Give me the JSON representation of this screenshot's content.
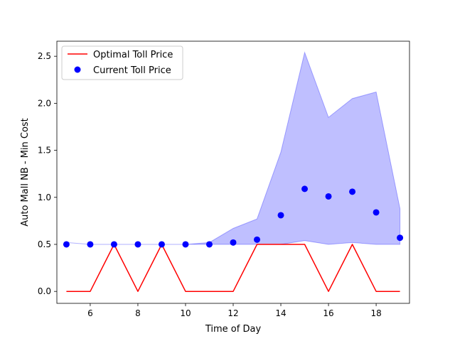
{
  "chart_data": {
    "type": "line",
    "xlabel": "Time of Day",
    "ylabel": "Auto Mall NB - Min Cost",
    "xlim": [
      4.6,
      19.4
    ],
    "ylim": [
      -0.127,
      2.66
    ],
    "grid": false,
    "legend_position": "upper-left",
    "x_ticks": [
      6,
      8,
      10,
      12,
      14,
      16,
      18
    ],
    "x_tick_labels": [
      "6",
      "8",
      "10",
      "12",
      "14",
      "16",
      "18"
    ],
    "y_ticks": [
      0.0,
      0.5,
      1.0,
      1.5,
      2.0,
      2.5
    ],
    "y_tick_labels": [
      "0.0",
      "0.5",
      "1.0",
      "1.5",
      "2.0",
      "2.5"
    ],
    "x": [
      5,
      6,
      7,
      8,
      9,
      10,
      11,
      12,
      13,
      14,
      15,
      16,
      17,
      18,
      19
    ],
    "series": [
      {
        "name": "Optimal Toll Price",
        "kind": "line",
        "color": "#ff0000",
        "values": [
          0,
          0,
          0.5,
          0,
          0.5,
          0,
          0,
          0,
          0.5,
          0.5,
          0.5,
          0,
          0.5,
          0,
          0
        ]
      },
      {
        "name": "Current Toll Price",
        "kind": "scatter",
        "color": "#0000ff",
        "values": [
          0.5,
          0.5,
          0.5,
          0.5,
          0.5,
          0.5,
          0.5,
          0.52,
          0.55,
          0.81,
          1.09,
          1.01,
          1.06,
          0.84,
          0.57
        ]
      }
    ],
    "band": {
      "color": "#0000ff",
      "opacity": 0.25,
      "lower": [
        0.52,
        0.5,
        0.5,
        0.5,
        0.5,
        0.5,
        0.5,
        0.5,
        0.5,
        0.5,
        0.54,
        0.5,
        0.52,
        0.5,
        0.5
      ],
      "upper": [
        0.52,
        0.5,
        0.5,
        0.5,
        0.5,
        0.5,
        0.52,
        0.67,
        0.77,
        1.48,
        2.54,
        1.85,
        2.05,
        2.12,
        0.88
      ]
    }
  }
}
